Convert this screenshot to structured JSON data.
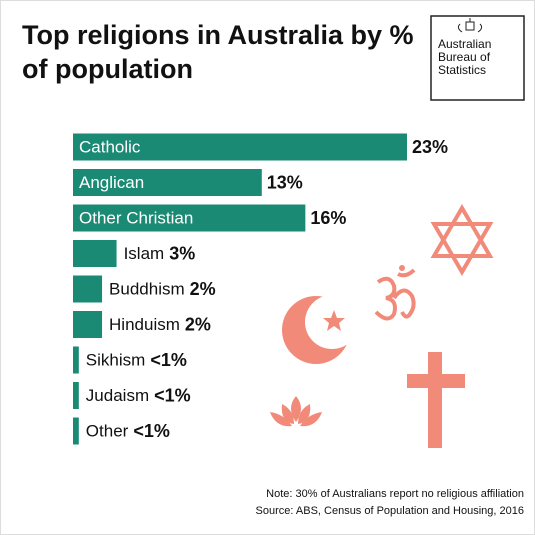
{
  "chart_data": {
    "type": "bar",
    "orientation": "horizontal",
    "title": "Top religions in Australia by % of population",
    "logo_text": "Australian Bureau of Statistics",
    "categories": [
      "Catholic",
      "Anglican",
      "Other Christian",
      "Islam",
      "Buddhism",
      "Hinduism",
      "Sikhism",
      "Judaism",
      "Other"
    ],
    "values": [
      23,
      13,
      16,
      3,
      2,
      2,
      0.4,
      0.4,
      0.4
    ],
    "value_labels": [
      "23%",
      "13%",
      "16%",
      "3%",
      "2%",
      "2%",
      "<1%",
      "<1%",
      "<1%"
    ],
    "color": "#1b8a74",
    "notes": [
      "Note: 30% of Australians report no religious affiliation",
      "Source: ABS, Census of Population and Housing, 2016"
    ]
  }
}
